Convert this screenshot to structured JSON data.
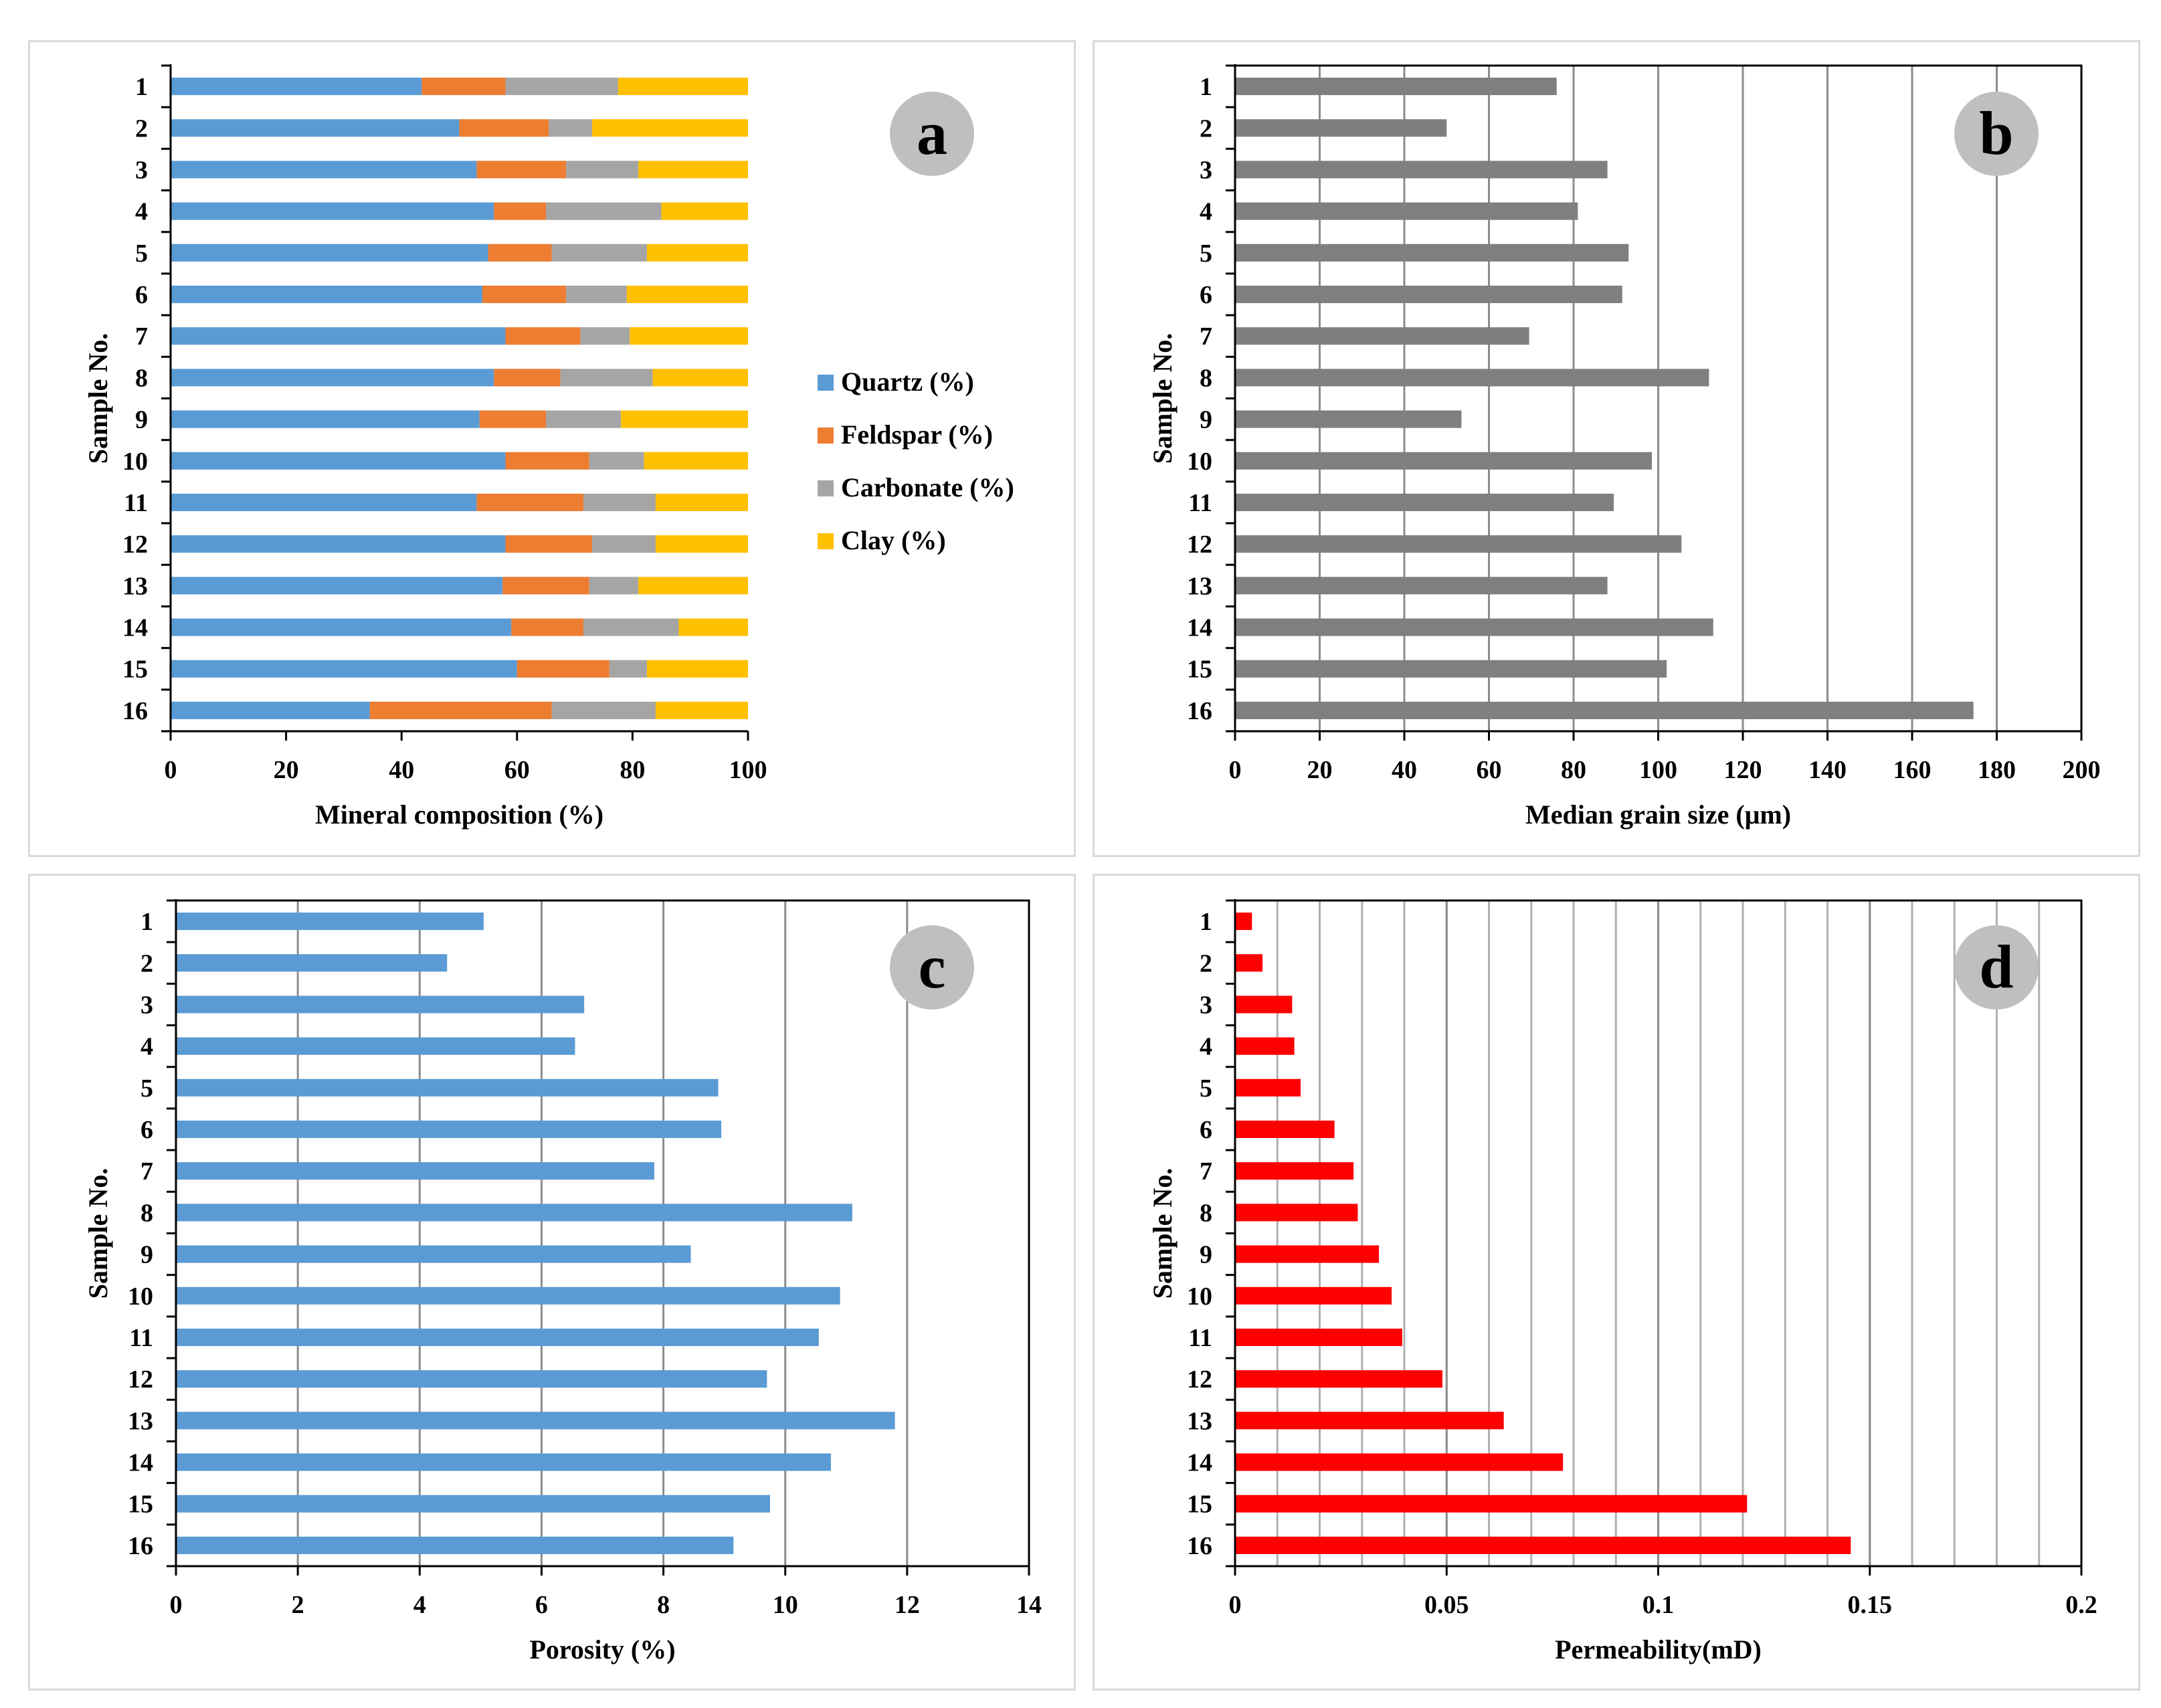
{
  "charts": [
    {
      "id": "a",
      "type": "bar",
      "stacked": true,
      "orientation": "horizontal",
      "panel_label": "a",
      "categories": [
        "1",
        "2",
        "3",
        "4",
        "5",
        "6",
        "7",
        "8",
        "9",
        "10",
        "11",
        "12",
        "13",
        "14",
        "15",
        "16"
      ],
      "xlabel": "Mineral composition (%)",
      "ylabel": "Sample No.",
      "xlim": [
        0,
        100
      ],
      "xticks": [
        0,
        20,
        40,
        60,
        80,
        100
      ],
      "gridlines": false,
      "legend": "right",
      "series": [
        {
          "name": "Quartz   (%)",
          "color": "#5b9bd5",
          "values": [
            43.5,
            50,
            53,
            56,
            55,
            54,
            58,
            56,
            53.5,
            58,
            53,
            58,
            57.5,
            59,
            60,
            34.5
          ]
        },
        {
          "name": "Feldspar (%)",
          "color": "#ed7d31",
          "values": [
            14.5,
            15.5,
            15.5,
            9,
            11,
            14.5,
            13,
            11.5,
            11.5,
            14.5,
            18.5,
            15,
            15,
            12.5,
            16,
            31.5
          ]
        },
        {
          "name": "Carbonate (%)",
          "color": "#a5a5a5",
          "values": [
            19.5,
            7.5,
            12.5,
            20,
            16.5,
            10.5,
            8.5,
            16,
            13,
            9.5,
            12.5,
            11,
            8.5,
            16.5,
            6.5,
            18
          ]
        },
        {
          "name": "Clay (%)",
          "color": "#ffc000",
          "values": [
            22.5,
            27,
            19,
            15,
            17.5,
            21,
            20.5,
            16.5,
            22,
            18,
            16,
            16,
            19,
            12,
            17.5,
            16
          ]
        }
      ]
    },
    {
      "id": "b",
      "type": "bar",
      "orientation": "horizontal",
      "panel_label": "b",
      "categories": [
        "1",
        "2",
        "3",
        "4",
        "5",
        "6",
        "7",
        "8",
        "9",
        "10",
        "11",
        "12",
        "13",
        "14",
        "15",
        "16"
      ],
      "xlabel": "Median grain size (μm)",
      "ylabel": "Sample No.",
      "xlim": [
        0,
        200
      ],
      "xticks": [
        0,
        20,
        40,
        60,
        80,
        100,
        120,
        140,
        160,
        180,
        200
      ],
      "gridlines": true,
      "series": [
        {
          "name": "Median grain size",
          "color": "#7f7f7f",
          "values": [
            76,
            50,
            88,
            81,
            93,
            91.5,
            69.5,
            112,
            53.5,
            98.5,
            89.5,
            105.5,
            88,
            113,
            102,
            174.5
          ]
        }
      ]
    },
    {
      "id": "c",
      "type": "bar",
      "orientation": "horizontal",
      "panel_label": "c",
      "categories": [
        "1",
        "2",
        "3",
        "4",
        "5",
        "6",
        "7",
        "8",
        "9",
        "10",
        "11",
        "12",
        "13",
        "14",
        "15",
        "16"
      ],
      "xlabel": "Porosity (%)",
      "ylabel": "Sample No.",
      "xlim": [
        0,
        14
      ],
      "xticks": [
        0,
        2,
        4,
        6,
        8,
        10,
        12,
        14
      ],
      "gridlines": true,
      "series": [
        {
          "name": "Porosity",
          "color": "#5b9bd5",
          "values": [
            5.05,
            4.45,
            6.7,
            6.55,
            8.9,
            8.95,
            7.85,
            11.1,
            8.45,
            10.9,
            10.55,
            9.7,
            11.8,
            10.75,
            9.75,
            9.15
          ]
        }
      ]
    },
    {
      "id": "d",
      "type": "bar",
      "orientation": "horizontal",
      "panel_label": "d",
      "categories": [
        "1",
        "2",
        "3",
        "4",
        "5",
        "6",
        "7",
        "8",
        "9",
        "10",
        "11",
        "12",
        "13",
        "14",
        "15",
        "16"
      ],
      "xlabel": "Permeability(mD)",
      "ylabel": "Sample No.",
      "xlim": [
        0,
        0.2
      ],
      "xticks": [
        0,
        0.05,
        0.1,
        0.15,
        0.2
      ],
      "xtick_labels": [
        "0",
        "0.05",
        "0.1",
        "0.15",
        "0.2"
      ],
      "minor_gridlines_step": 0.01,
      "gridlines": true,
      "series": [
        {
          "name": "Permeability",
          "color": "#ff0000",
          "values": [
            0.004,
            0.0065,
            0.0135,
            0.014,
            0.0155,
            0.0235,
            0.028,
            0.029,
            0.034,
            0.037,
            0.0395,
            0.049,
            0.0635,
            0.0775,
            0.121,
            0.1455
          ]
        }
      ]
    }
  ],
  "chart_data": [
    {
      "type": "bar",
      "title": "a",
      "categories": [
        "1",
        "2",
        "3",
        "4",
        "5",
        "6",
        "7",
        "8",
        "9",
        "10",
        "11",
        "12",
        "13",
        "14",
        "15",
        "16"
      ],
      "series": [
        {
          "name": "Quartz   (%)",
          "values": [
            43.5,
            50,
            53,
            56,
            55,
            54,
            58,
            56,
            53.5,
            58,
            53,
            58,
            57.5,
            59,
            60,
            34.5
          ]
        },
        {
          "name": "Feldspar (%)",
          "values": [
            14.5,
            15.5,
            15.5,
            9,
            11,
            14.5,
            13,
            11.5,
            11.5,
            14.5,
            18.5,
            15,
            15,
            12.5,
            16,
            31.5
          ]
        },
        {
          "name": "Carbonate (%)",
          "values": [
            19.5,
            7.5,
            12.5,
            20,
            16.5,
            10.5,
            8.5,
            16,
            13,
            9.5,
            12.5,
            11,
            8.5,
            16.5,
            6.5,
            18
          ]
        },
        {
          "name": "Clay (%)",
          "values": [
            22.5,
            27,
            19,
            15,
            17.5,
            21,
            20.5,
            16.5,
            22,
            18,
            16,
            16,
            19,
            12,
            17.5,
            16
          ]
        }
      ],
      "xlabel": "Mineral composition (%)",
      "ylabel": "Sample No.",
      "xlim": [
        0,
        100
      ]
    },
    {
      "type": "bar",
      "title": "b",
      "categories": [
        "1",
        "2",
        "3",
        "4",
        "5",
        "6",
        "7",
        "8",
        "9",
        "10",
        "11",
        "12",
        "13",
        "14",
        "15",
        "16"
      ],
      "values": [
        76,
        50,
        88,
        81,
        93,
        91.5,
        69.5,
        112,
        53.5,
        98.5,
        89.5,
        105.5,
        88,
        113,
        102,
        174.5
      ],
      "xlabel": "Median grain size (μm)",
      "ylabel": "Sample No.",
      "xlim": [
        0,
        200
      ]
    },
    {
      "type": "bar",
      "title": "c",
      "categories": [
        "1",
        "2",
        "3",
        "4",
        "5",
        "6",
        "7",
        "8",
        "9",
        "10",
        "11",
        "12",
        "13",
        "14",
        "15",
        "16"
      ],
      "values": [
        5.05,
        4.45,
        6.7,
        6.55,
        8.9,
        8.95,
        7.85,
        11.1,
        8.45,
        10.9,
        10.55,
        9.7,
        11.8,
        10.75,
        9.75,
        9.15
      ],
      "xlabel": "Porosity (%)",
      "ylabel": "Sample No.",
      "xlim": [
        0,
        14
      ]
    },
    {
      "type": "bar",
      "title": "d",
      "categories": [
        "1",
        "2",
        "3",
        "4",
        "5",
        "6",
        "7",
        "8",
        "9",
        "10",
        "11",
        "12",
        "13",
        "14",
        "15",
        "16"
      ],
      "values": [
        0.004,
        0.0065,
        0.0135,
        0.014,
        0.0155,
        0.0235,
        0.028,
        0.029,
        0.034,
        0.037,
        0.0395,
        0.049,
        0.0635,
        0.0775,
        0.121,
        0.1455
      ],
      "xlabel": "Permeability(mD)",
      "ylabel": "Sample No.",
      "xlim": [
        0,
        0.2
      ]
    }
  ]
}
